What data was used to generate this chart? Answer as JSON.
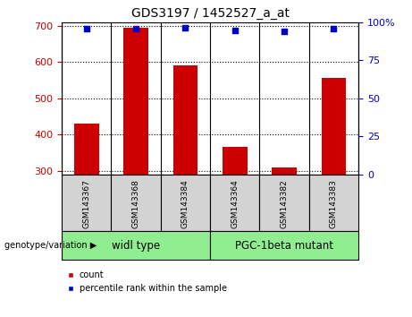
{
  "title": "GDS3197 / 1452527_a_at",
  "samples": [
    "GSM143367",
    "GSM143368",
    "GSM143384",
    "GSM143364",
    "GSM143382",
    "GSM143383"
  ],
  "bar_values": [
    430,
    695,
    590,
    365,
    310,
    555
  ],
  "bar_base": 290,
  "percentile_values": [
    95.5,
    96.0,
    96.5,
    94.5,
    94.0,
    95.5
  ],
  "ylim_left": [
    290,
    710
  ],
  "ylim_right": [
    0,
    100
  ],
  "yticks_left": [
    300,
    400,
    500,
    600,
    700
  ],
  "yticks_right": [
    0,
    25,
    50,
    75,
    100
  ],
  "bar_color": "#cc0000",
  "percentile_color": "#0000cc",
  "grid_color": "black",
  "group1_label": "widl type",
  "group2_label": "PGC-1beta mutant",
  "group1_indices": [
    0,
    1,
    2
  ],
  "group2_indices": [
    3,
    4,
    5
  ],
  "group_bg_color": "#90ee90",
  "sample_bg_color": "#d3d3d3",
  "genotype_label": "genotype/variation",
  "legend_count_label": "count",
  "legend_percentile_label": "percentile rank within the sample",
  "left_label_color": "#cc0000",
  "right_label_color": "#0000cc",
  "fig_width": 4.61,
  "fig_height": 3.54,
  "dpi": 100
}
